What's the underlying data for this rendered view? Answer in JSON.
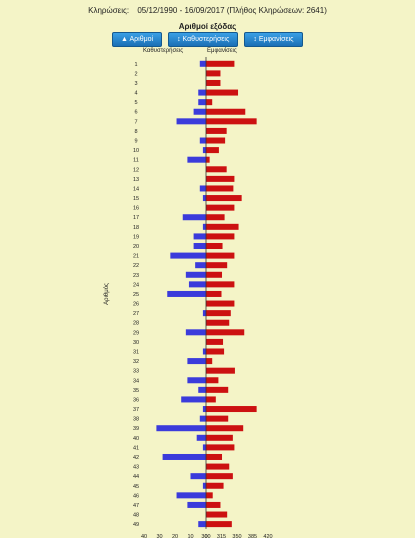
{
  "header": {
    "label": "Κληρώσεις:",
    "range": "05/12/1990 - 16/09/2017",
    "count": "(Πλήθος Κληρώσεων: 2641)"
  },
  "chart_title": "Αριθμοί εξόδας",
  "buttons": [
    {
      "icon": "triangle-up-icon",
      "symbol": "▲",
      "label": "Αριθμοί"
    },
    {
      "icon": "sort-icon",
      "symbol": "↕",
      "label": "Καθυστερήσεις"
    },
    {
      "icon": "sort-icon",
      "symbol": "↕",
      "label": "Εμφανίσεις"
    }
  ],
  "col_left": "Καθυστερήσεις",
  "col_right": "Εμφανίσεις",
  "colors": {
    "left_bar": "#3b3bdb",
    "right_bar": "#cc1111",
    "background": "#f4f4c7"
  },
  "chart_data": {
    "type": "bar",
    "ylabel": "Αριθμός",
    "categories": [
      "1",
      "2",
      "3",
      "4",
      "5",
      "6",
      "7",
      "8",
      "9",
      "10",
      "11",
      "12",
      "13",
      "14",
      "15",
      "16",
      "17",
      "18",
      "19",
      "20",
      "21",
      "22",
      "23",
      "24",
      "25",
      "26",
      "27",
      "28",
      "29",
      "30",
      "31",
      "32",
      "33",
      "34",
      "35",
      "36",
      "37",
      "38",
      "39",
      "40",
      "41",
      "42",
      "43",
      "44",
      "45",
      "46",
      "47",
      "48",
      "49"
    ],
    "series": [
      {
        "name": "Καθυστερήσεις",
        "values": [
          4,
          0,
          0,
          5,
          5,
          8,
          19,
          0,
          4,
          2,
          12,
          0,
          0,
          4,
          2,
          0,
          15,
          2,
          8,
          8,
          23,
          7,
          13,
          11,
          25,
          0,
          2,
          0,
          13,
          0,
          2,
          12,
          0,
          12,
          5,
          16,
          2,
          4,
          32,
          6,
          2,
          28,
          0,
          10,
          2,
          19,
          12,
          0,
          5
        ]
      },
      {
        "name": "Εμφανίσεις",
        "values": [
          355,
          328,
          328,
          362,
          312,
          376,
          398,
          340,
          337,
          325,
          307,
          340,
          355,
          353,
          369,
          355,
          336,
          363,
          355,
          332,
          355,
          341,
          331,
          355,
          330,
          355,
          348,
          345,
          374,
          333,
          335,
          312,
          356,
          324,
          343,
          319,
          398,
          343,
          372,
          352,
          355,
          331,
          345,
          352,
          334,
          313,
          328,
          341,
          350
        ]
      }
    ],
    "x_left_ticks": [
      "40",
      "30",
      "20",
      "10",
      "0"
    ],
    "x_right_ticks": [
      "300",
      "315",
      "350",
      "385",
      "420"
    ],
    "xlim_left": [
      40,
      0
    ],
    "xlim_right": [
      300,
      420
    ]
  }
}
